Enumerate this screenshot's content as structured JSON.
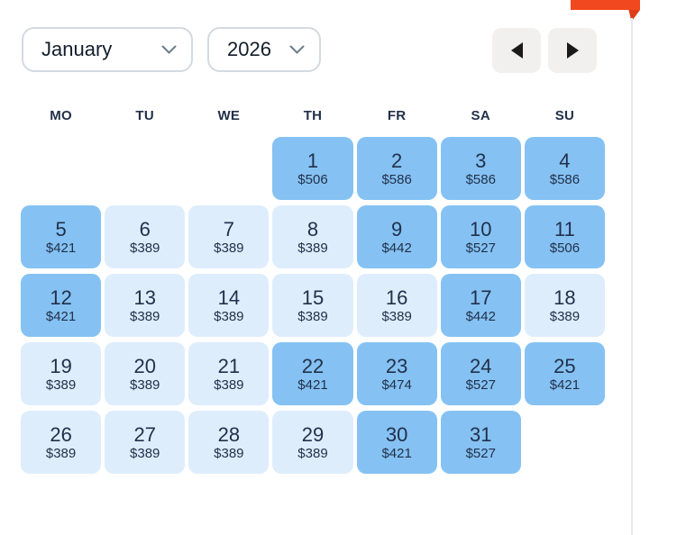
{
  "ribbon": {
    "name": "clipped-tooltip-ribbon",
    "color": "#f2481f"
  },
  "controls": {
    "month_select": {
      "value": "January"
    },
    "year_select": {
      "value": "2026"
    },
    "prev_button": {
      "icon": "arrow-left"
    },
    "next_button": {
      "icon": "arrow-right"
    }
  },
  "calendar": {
    "month": "January",
    "year": "2026",
    "day_headers": [
      "MO",
      "TU",
      "WE",
      "TH",
      "FR",
      "SA",
      "SU"
    ],
    "days": [
      {
        "day": "",
        "price": "",
        "tone": "empty"
      },
      {
        "day": "",
        "price": "",
        "tone": "empty"
      },
      {
        "day": "",
        "price": "",
        "tone": "empty"
      },
      {
        "day": "1",
        "price": "$506",
        "tone": "medium"
      },
      {
        "day": "2",
        "price": "$586",
        "tone": "medium"
      },
      {
        "day": "3",
        "price": "$586",
        "tone": "medium"
      },
      {
        "day": "4",
        "price": "$586",
        "tone": "medium"
      },
      {
        "day": "5",
        "price": "$421",
        "tone": "medium"
      },
      {
        "day": "6",
        "price": "$389",
        "tone": "light"
      },
      {
        "day": "7",
        "price": "$389",
        "tone": "light"
      },
      {
        "day": "8",
        "price": "$389",
        "tone": "light"
      },
      {
        "day": "9",
        "price": "$442",
        "tone": "medium"
      },
      {
        "day": "10",
        "price": "$527",
        "tone": "medium"
      },
      {
        "day": "11",
        "price": "$506",
        "tone": "medium"
      },
      {
        "day": "12",
        "price": "$421",
        "tone": "medium"
      },
      {
        "day": "13",
        "price": "$389",
        "tone": "light"
      },
      {
        "day": "14",
        "price": "$389",
        "tone": "light"
      },
      {
        "day": "15",
        "price": "$389",
        "tone": "light"
      },
      {
        "day": "16",
        "price": "$389",
        "tone": "light"
      },
      {
        "day": "17",
        "price": "$442",
        "tone": "medium"
      },
      {
        "day": "18",
        "price": "$389",
        "tone": "light"
      },
      {
        "day": "19",
        "price": "$389",
        "tone": "light"
      },
      {
        "day": "20",
        "price": "$389",
        "tone": "light"
      },
      {
        "day": "21",
        "price": "$389",
        "tone": "light"
      },
      {
        "day": "22",
        "price": "$421",
        "tone": "medium"
      },
      {
        "day": "23",
        "price": "$474",
        "tone": "medium"
      },
      {
        "day": "24",
        "price": "$527",
        "tone": "medium"
      },
      {
        "day": "25",
        "price": "$421",
        "tone": "medium"
      },
      {
        "day": "26",
        "price": "$389",
        "tone": "light"
      },
      {
        "day": "27",
        "price": "$389",
        "tone": "light"
      },
      {
        "day": "28",
        "price": "$389",
        "tone": "light"
      },
      {
        "day": "29",
        "price": "$389",
        "tone": "light"
      },
      {
        "day": "30",
        "price": "$421",
        "tone": "medium"
      },
      {
        "day": "31",
        "price": "$527",
        "tone": "medium"
      },
      {
        "day": "",
        "price": "",
        "tone": "empty"
      }
    ]
  },
  "colors": {
    "cell_medium": "#85c2f3",
    "cell_light": "#deedfc",
    "cell_text": "#22304a",
    "ribbon": "#f2481f",
    "button_bg": "#f2f0ee",
    "select_border": "#d3dae1",
    "divider": "#e9e9eb"
  }
}
